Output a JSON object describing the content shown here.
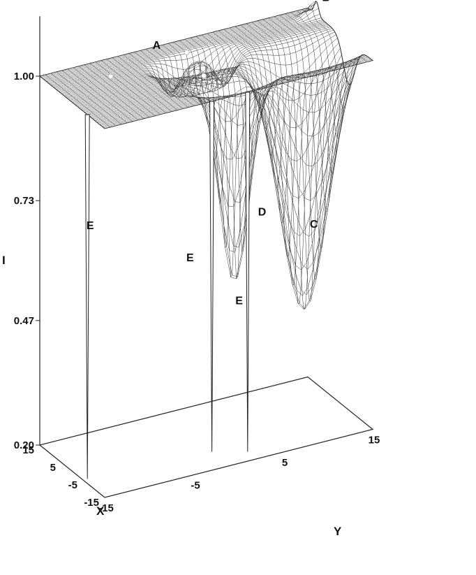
{
  "chart_data": {
    "type": "surface",
    "title": "",
    "xlabel": "X",
    "ylabel": "Y",
    "zlabel": "I",
    "xlim": [
      -15,
      15
    ],
    "ylim": [
      -15,
      15
    ],
    "zlim": [
      0.2,
      1.0
    ],
    "x_ticks": [
      "15",
      "5",
      "-5",
      "-15"
    ],
    "y_ticks": [
      "-15",
      "-5",
      "5",
      "15"
    ],
    "z_ticks": [
      "1.00",
      "0.73",
      "0.47",
      "0.20"
    ],
    "surface": {
      "baseline": 1.0,
      "features": [
        {
          "label": "C",
          "kind": "broad-dip",
          "x": -4,
          "y": 10,
          "min": 0.44
        },
        {
          "label": "D",
          "kind": "dip",
          "x": -9,
          "y": 1,
          "min": 0.56
        },
        {
          "label": "B",
          "kind": "bump",
          "x": 11,
          "y": 15,
          "max": 1.03
        },
        {
          "label": "E",
          "kind": "spike",
          "x": -7,
          "y": -15,
          "min": 0.21
        },
        {
          "label": "E",
          "kind": "spike",
          "x": -15,
          "y": -3,
          "min": 0.24
        },
        {
          "label": "E",
          "kind": "spike",
          "x": -15,
          "y": 1,
          "min": 0.22
        }
      ],
      "markers": [
        {
          "x": 7,
          "y": -9
        },
        {
          "x": 9,
          "y": 0
        },
        {
          "x": -3,
          "y": -1
        }
      ]
    },
    "annotations": [
      {
        "text": "A",
        "x": 15,
        "y": -3,
        "z": 1.0
      },
      {
        "text": "B",
        "x": 11,
        "y": 15,
        "z": 1.03
      },
      {
        "text": "C",
        "x": -4,
        "y": 10,
        "z": 0.62
      },
      {
        "text": "D",
        "x": -9,
        "y": 3,
        "z": 0.7
      },
      {
        "text": "E",
        "x": -4,
        "y": -15,
        "z": 0.74
      },
      {
        "text": "E",
        "x": -13,
        "y": -6,
        "z": 0.66
      },
      {
        "text": "E",
        "x": -15,
        "y": -1,
        "z": 0.55
      }
    ],
    "grid": false,
    "legend": "none"
  }
}
